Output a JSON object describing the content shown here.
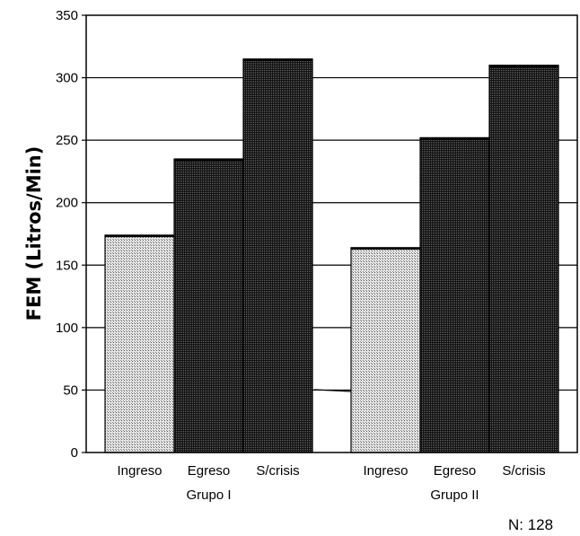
{
  "chart_data": {
    "type": "bar",
    "ylabel": "FEM (Litros/Min)",
    "xlabel": "",
    "ylim": [
      0,
      350
    ],
    "yticks": [
      0,
      50,
      100,
      150,
      200,
      250,
      300,
      350
    ],
    "grid": true,
    "groups": [
      {
        "name": "Grupo I",
        "bars": [
          {
            "category": "Ingreso",
            "value": 174,
            "fill": "light"
          },
          {
            "category": "Egreso",
            "value": 235,
            "fill": "dark"
          },
          {
            "category": "S/crisis",
            "value": 315,
            "fill": "dark"
          }
        ]
      },
      {
        "name": "Grupo II",
        "bars": [
          {
            "category": "Ingreso",
            "value": 164,
            "fill": "light"
          },
          {
            "category": "Egreso",
            "value": 252,
            "fill": "dark"
          },
          {
            "category": "S/crisis",
            "value": 310,
            "fill": "dark"
          }
        ]
      }
    ],
    "annotation": "N: 128"
  }
}
